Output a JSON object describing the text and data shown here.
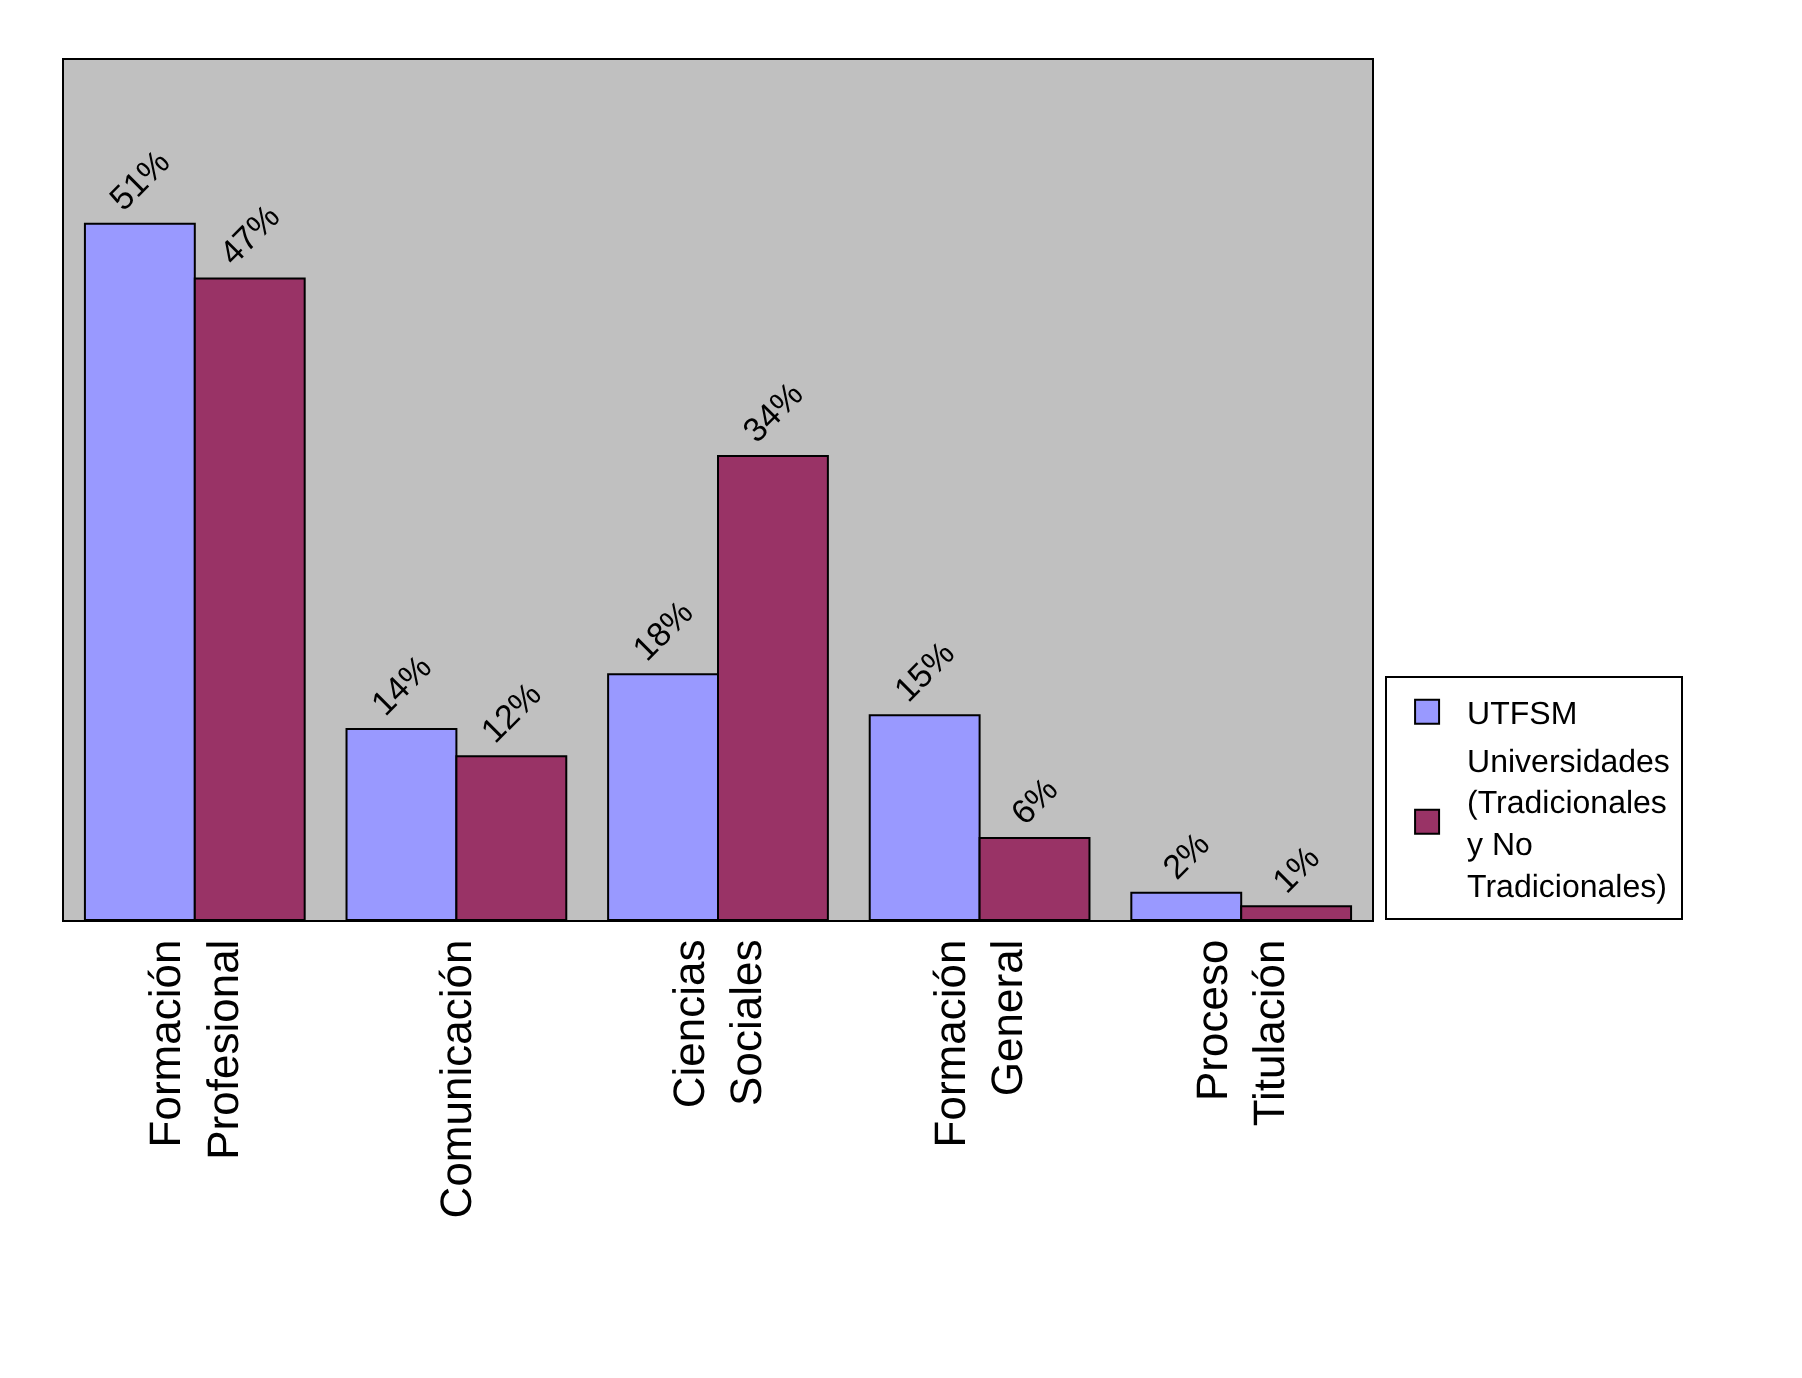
{
  "chart_data": {
    "type": "bar",
    "categories": [
      "Formación Profesional",
      "Comunicación",
      "Ciencias Sociales",
      "Formación General",
      "Proceso Titulación"
    ],
    "series": [
      {
        "name": "UTFSM",
        "color": "#9999ff",
        "values": [
          51,
          14,
          18,
          15,
          2
        ],
        "value_labels": [
          "51%",
          "14%",
          "18%",
          "15%",
          "2%"
        ]
      },
      {
        "name": "Universidades (Tradicionales y No Tradicionales)",
        "color": "#993366",
        "values": [
          47,
          12,
          34,
          6,
          1
        ],
        "value_labels": [
          "47%",
          "12%",
          "34%",
          "6%",
          "1%"
        ]
      }
    ],
    "ylim": [
      0,
      63
    ],
    "legend": "right",
    "grid": false
  }
}
